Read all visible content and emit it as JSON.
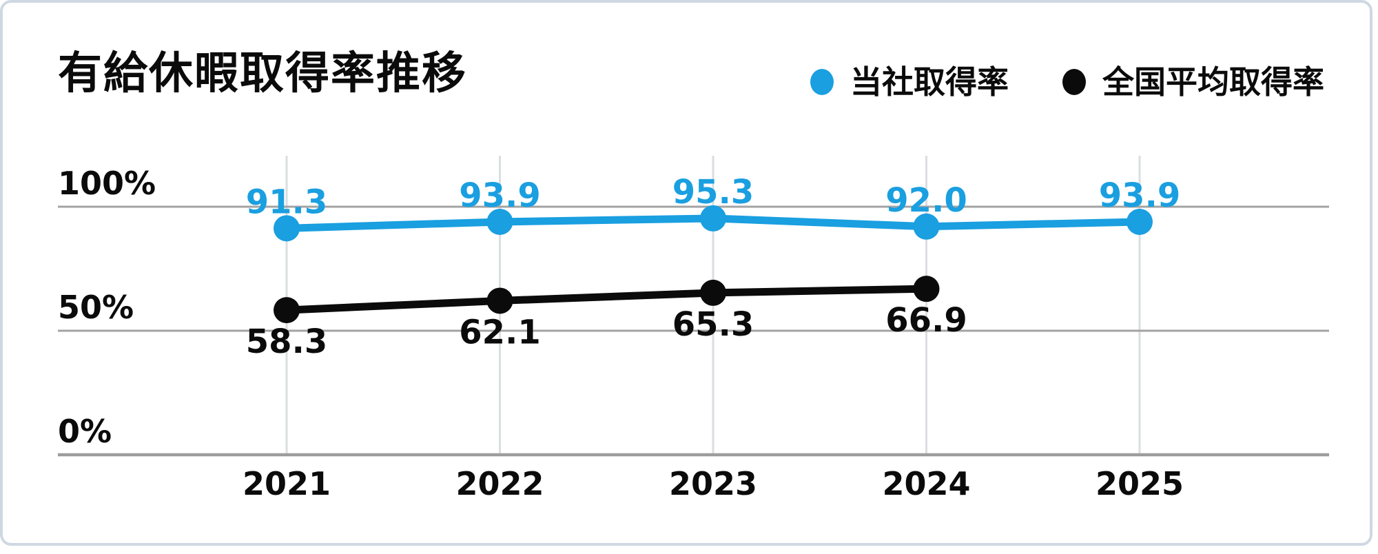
{
  "title": "有給休暇取得率推移",
  "legend": [
    {
      "id": "company",
      "label": "当社取得率",
      "color": "#1A9FE0"
    },
    {
      "id": "national",
      "label": "全国平均取得率",
      "color": "#0B0B0B"
    }
  ],
  "colors": {
    "accent_blue": "#1A9FE0",
    "text": "#0B0B0B",
    "grid_minor": "#dadee1",
    "grid_major": "#a3a3a3",
    "axis": "#9c9c9c",
    "card_border": "#cfd8e2",
    "card_background": "#ffffff"
  },
  "chart_data": {
    "type": "line",
    "title": "有給休暇取得率推移",
    "categories": [
      "2021",
      "2022",
      "2023",
      "2024",
      "2025"
    ],
    "series": [
      {
        "id": "company",
        "name": "当社取得率",
        "color": "#1A9FE0",
        "values": [
          91.3,
          93.9,
          95.3,
          92.0,
          93.9
        ],
        "labels": [
          "91.3",
          "93.9",
          "95.3",
          "92.0",
          "93.9"
        ],
        "label_position": "above"
      },
      {
        "id": "national",
        "name": "全国平均取得率",
        "color": "#0B0B0B",
        "values": [
          58.3,
          62.1,
          65.3,
          66.9,
          null
        ],
        "labels": [
          "58.3",
          "62.1",
          "65.3",
          "66.9",
          null
        ],
        "label_position": "below"
      }
    ],
    "yticks": [
      {
        "label": "0%",
        "value": 0
      },
      {
        "label": "50%",
        "value": 50
      },
      {
        "label": "100%",
        "value": 100
      }
    ],
    "ylim": [
      0,
      100
    ],
    "xlabel": "",
    "ylabel": "",
    "grid": true,
    "legend_position": "top-right"
  }
}
